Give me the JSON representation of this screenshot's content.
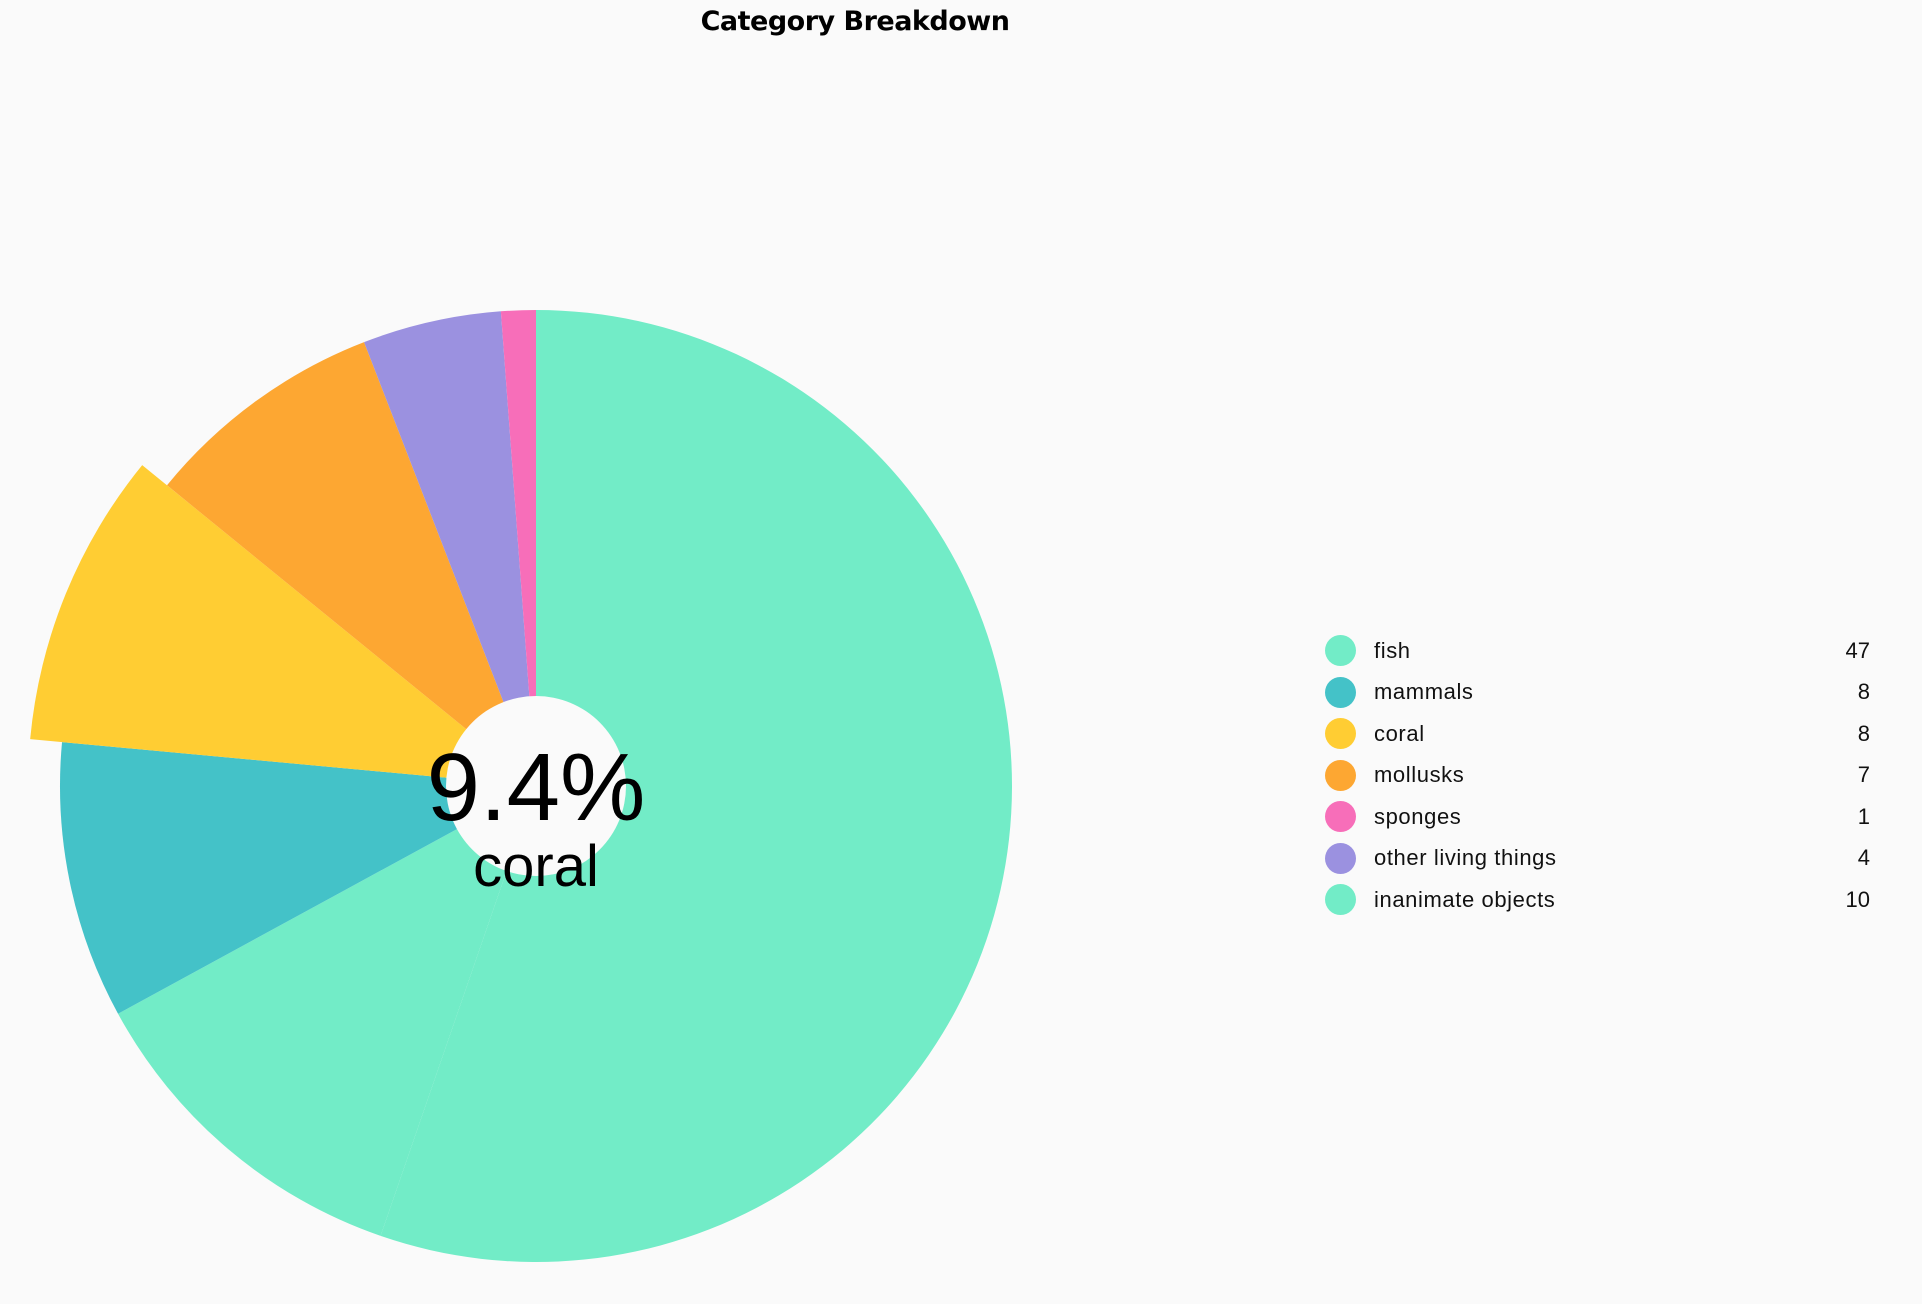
{
  "chart_data": {
    "type": "pie",
    "title": "Category Breakdown",
    "categories": [
      "fish",
      "mammals",
      "coral",
      "mollusks",
      "sponges",
      "other living things",
      "inanimate objects"
    ],
    "values": [
      47,
      8,
      8,
      7,
      1,
      4,
      10
    ],
    "colors": [
      "#72ecc7",
      "#44c2c8",
      "#ffcd33",
      "#fda732",
      "#f76eb9",
      "#9b91e0",
      "#72ecc7"
    ],
    "slice_order": [
      "fish",
      "inanimate objects",
      "mammals",
      "coral",
      "mollusks",
      "other living things",
      "sponges"
    ],
    "highlighted": "coral",
    "center": {
      "value": "9.4%",
      "label": "coral"
    },
    "legend_position": "right"
  }
}
